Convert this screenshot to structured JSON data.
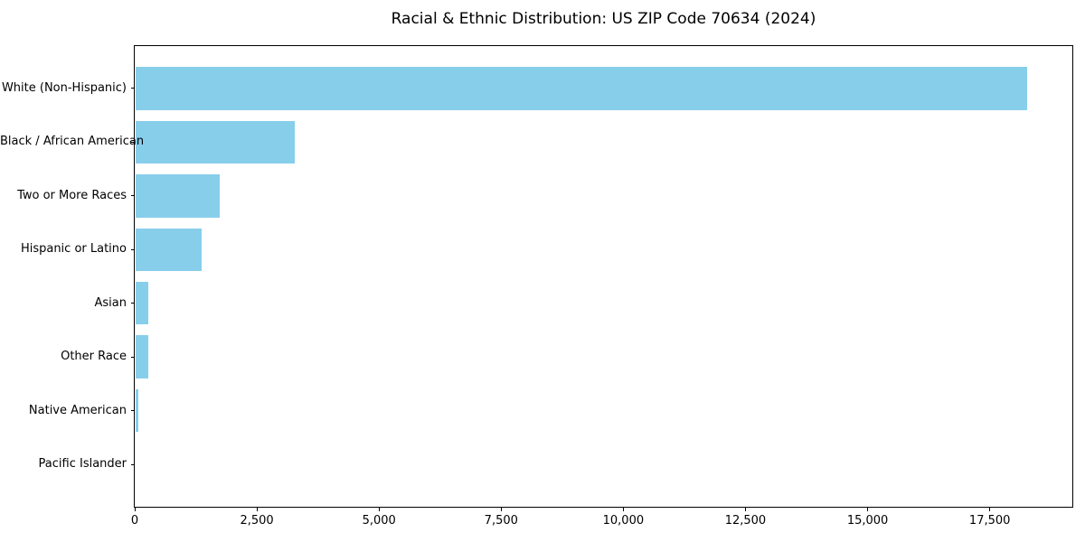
{
  "chart_data": {
    "type": "bar",
    "orientation": "horizontal",
    "title": "Racial & Ethnic Distribution: US ZIP Code 70634 (2024)",
    "categories": [
      "White (Non-Hispanic)",
      "Black / African American",
      "Two or More Races",
      "Hispanic or Latino",
      "Asian",
      "Other Race",
      "Native American",
      "Pacific Islander"
    ],
    "values": [
      18250,
      3250,
      1720,
      1350,
      265,
      250,
      60,
      0
    ],
    "xlabel": "",
    "ylabel": "",
    "xlim": [
      0,
      19190
    ],
    "xticks": [
      0,
      2500,
      5000,
      7500,
      10000,
      12500,
      15000,
      17500
    ],
    "xtick_labels": [
      "0",
      "2,500",
      "5,000",
      "7,500",
      "10,000",
      "12,500",
      "15,000",
      "17,500"
    ],
    "bar_color": "#87CEEB",
    "text_color": "#000000",
    "grid": false,
    "legend": null
  }
}
